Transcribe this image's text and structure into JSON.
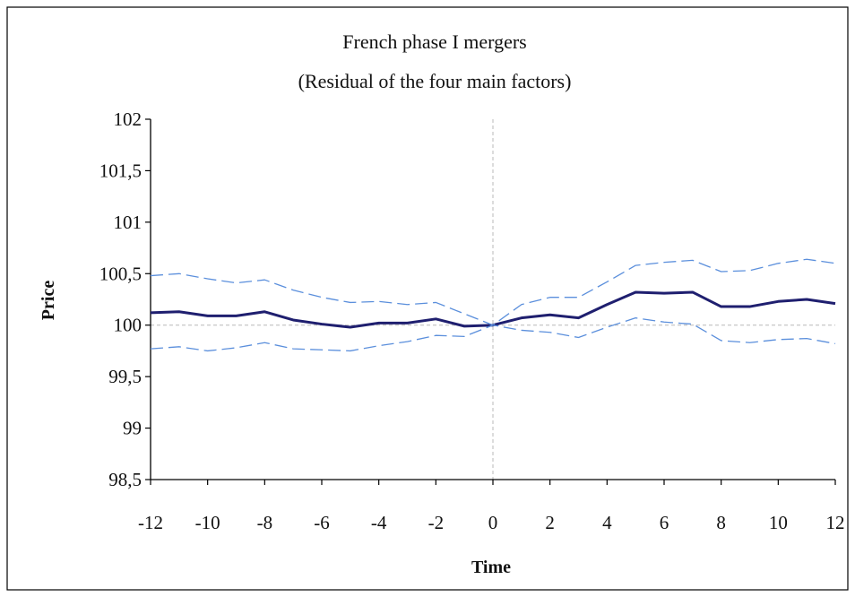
{
  "chart_data": {
    "type": "line",
    "title": "French phase I mergers",
    "subtitle": "(Residual of the four main factors)",
    "xlabel": "Time",
    "ylabel": "Price",
    "x": [
      -12,
      -11,
      -10,
      -9,
      -8,
      -7,
      -6,
      -5,
      -4,
      -3,
      -2,
      -1,
      0,
      1,
      2,
      3,
      4,
      5,
      6,
      7,
      8,
      9,
      10,
      11,
      12
    ],
    "xlim": [
      -12,
      12
    ],
    "ylim": [
      98.5,
      102
    ],
    "x_ticks": [
      "-12",
      "-10",
      "-8",
      "-6",
      "-4",
      "-2",
      "0",
      "2",
      "4",
      "6",
      "8",
      "10",
      "12"
    ],
    "x_tick_values": [
      -12,
      -10,
      -8,
      -6,
      -4,
      -2,
      0,
      2,
      4,
      6,
      8,
      10,
      12
    ],
    "y_ticks": [
      "98,5",
      "99",
      "99,5",
      "100",
      "100,5",
      "101",
      "101,5",
      "102"
    ],
    "y_tick_values": [
      98.5,
      99,
      99.5,
      100,
      100.5,
      101,
      101.5,
      102
    ],
    "reference_lines": {
      "vertical_x": 0,
      "horizontal_y": 100
    },
    "grid": false,
    "legend": "none",
    "series": [
      {
        "role": "estimate",
        "style": "solid",
        "color": "#1f1f6f",
        "values": [
          100.12,
          100.13,
          100.09,
          100.09,
          100.13,
          100.05,
          100.01,
          99.98,
          100.02,
          100.02,
          100.06,
          99.99,
          100.0,
          100.07,
          100.1,
          100.07,
          100.2,
          100.32,
          100.31,
          100.32,
          100.18,
          100.18,
          100.23,
          100.25,
          100.21
        ]
      },
      {
        "role": "upper-bound",
        "style": "dashed",
        "color": "#5b8fdc",
        "values": [
          100.48,
          100.5,
          100.45,
          100.41,
          100.44,
          100.34,
          100.27,
          100.22,
          100.23,
          100.2,
          100.22,
          100.11,
          100.0,
          100.2,
          100.27,
          100.27,
          100.42,
          100.58,
          100.61,
          100.63,
          100.52,
          100.53,
          100.6,
          100.64,
          100.6
        ]
      },
      {
        "role": "lower-bound",
        "style": "dashed",
        "color": "#5b8fdc",
        "values": [
          99.77,
          99.79,
          99.75,
          99.78,
          99.83,
          99.77,
          99.76,
          99.75,
          99.8,
          99.84,
          99.9,
          99.89,
          100.0,
          99.95,
          99.93,
          99.88,
          99.98,
          100.07,
          100.03,
          100.01,
          99.85,
          99.83,
          99.86,
          99.87,
          99.82
        ]
      }
    ]
  }
}
